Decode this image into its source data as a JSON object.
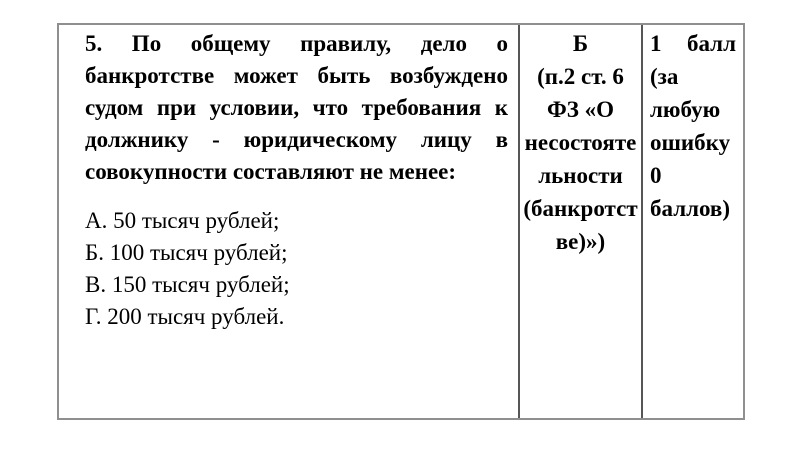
{
  "table": {
    "question": {
      "lines": [
        "5. По общему правилу, дело о",
        "банкротстве может быть возбуждено",
        "судом при условии, что требования к",
        "должнику - юридическому лицу в",
        "совокупности составляют не менее:"
      ],
      "options": [
        "А. 50 тысяч рублей;",
        "Б. 100 тысяч рублей;",
        "В. 150 тысяч рублей;",
        "Г. 200 тысяч рублей."
      ]
    },
    "answer": {
      "lines": [
        "Б",
        "(п.2 ст. 6",
        "ФЗ «О",
        "несостояте",
        "льности",
        "(банкротст",
        "ве)»)"
      ]
    },
    "score": {
      "lines": [
        "1 балл",
        "(за",
        "любую",
        "ошибку",
        "0",
        "баллов)"
      ]
    },
    "colors": {
      "outer_border": "#8f8f8f",
      "inner_border": "#565656",
      "text": "#000000",
      "background": "#ffffff"
    }
  }
}
